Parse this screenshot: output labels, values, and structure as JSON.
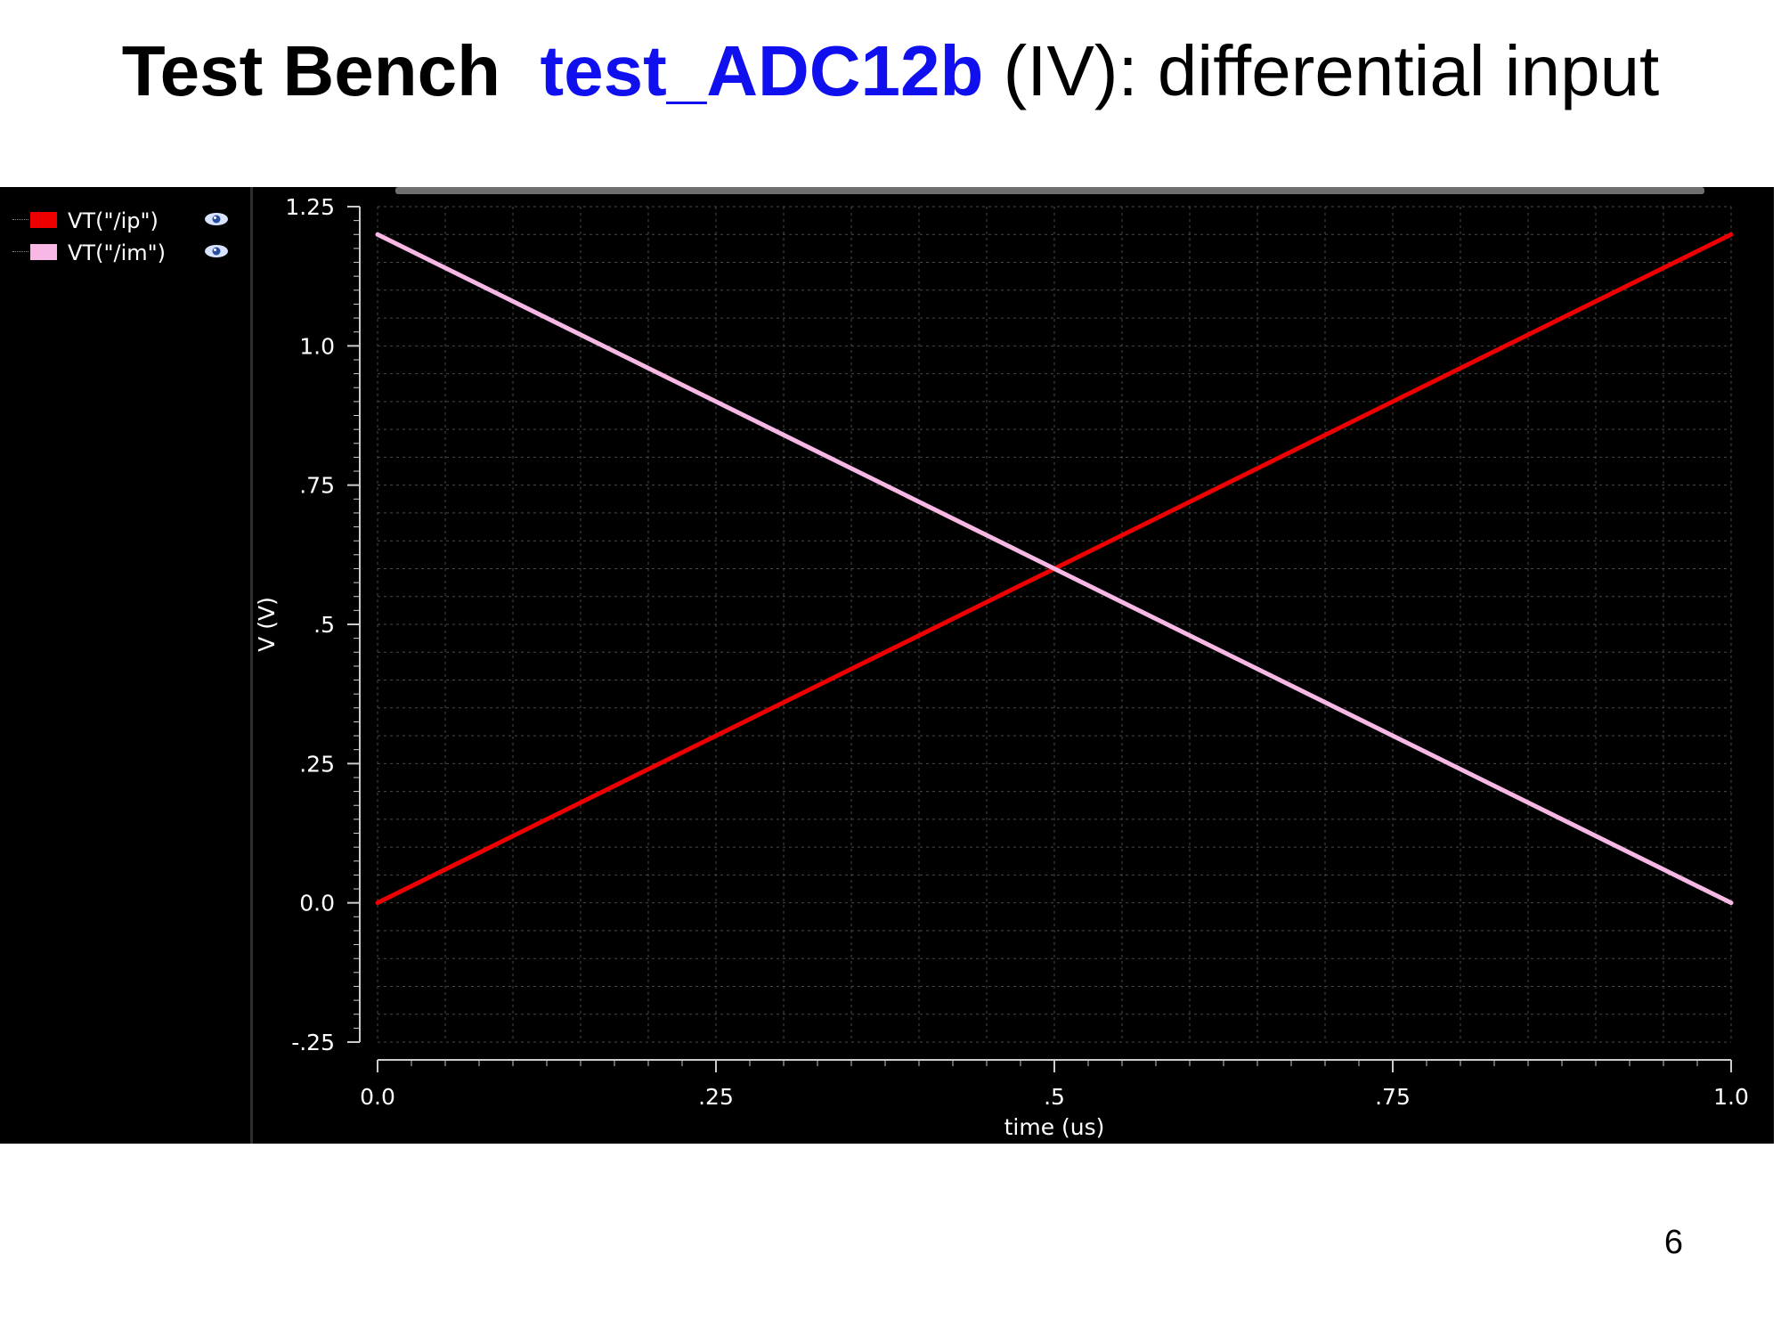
{
  "slide": {
    "title_bold": "Test Bench",
    "title_name": "test_ADC12b",
    "title_rest": " (IV): differential input",
    "page_number": "6"
  },
  "legend": [
    {
      "label": "VT(\"/ip\")",
      "color": "#ee0000",
      "icon": "eye-icon"
    },
    {
      "label": "VT(\"/im\")",
      "color": "#f7b8e6",
      "icon": "eye-icon"
    }
  ],
  "colors": {
    "background": "#000000",
    "grid": "#4a4a4a",
    "axis": "#cccccc",
    "title_accent": "#1010ee"
  },
  "chart_data": {
    "type": "line",
    "xlabel": "time (us)",
    "ylabel": "V (V)",
    "xlim": [
      0.0,
      1.0
    ],
    "ylim": [
      -0.25,
      1.25
    ],
    "x_ticks": [
      {
        "value": 0.0,
        "label": "0.0"
      },
      {
        "value": 0.25,
        "label": ".25"
      },
      {
        "value": 0.5,
        "label": ".5"
      },
      {
        "value": 0.75,
        "label": ".75"
      },
      {
        "value": 1.0,
        "label": "1.0"
      }
    ],
    "y_ticks": [
      {
        "value": 1.25,
        "label": "1.25"
      },
      {
        "value": 1.0,
        "label": "1.0"
      },
      {
        "value": 0.75,
        "label": ".75"
      },
      {
        "value": 0.5,
        "label": ".5"
      },
      {
        "value": 0.25,
        "label": ".25"
      },
      {
        "value": 0.0,
        "label": "0.0"
      },
      {
        "value": -0.25,
        "label": "-.25"
      }
    ],
    "grid": true,
    "legend_position": "left panel",
    "series": [
      {
        "name": "VT(\"/ip\")",
        "color": "#ee0000",
        "x": [
          0.0,
          0.5,
          1.0
        ],
        "y": [
          0.0,
          0.6,
          1.2
        ]
      },
      {
        "name": "VT(\"/im\")",
        "color": "#f7b8e6",
        "x": [
          0.0,
          0.5,
          1.0
        ],
        "y": [
          1.2,
          0.6,
          0.0
        ]
      }
    ]
  }
}
